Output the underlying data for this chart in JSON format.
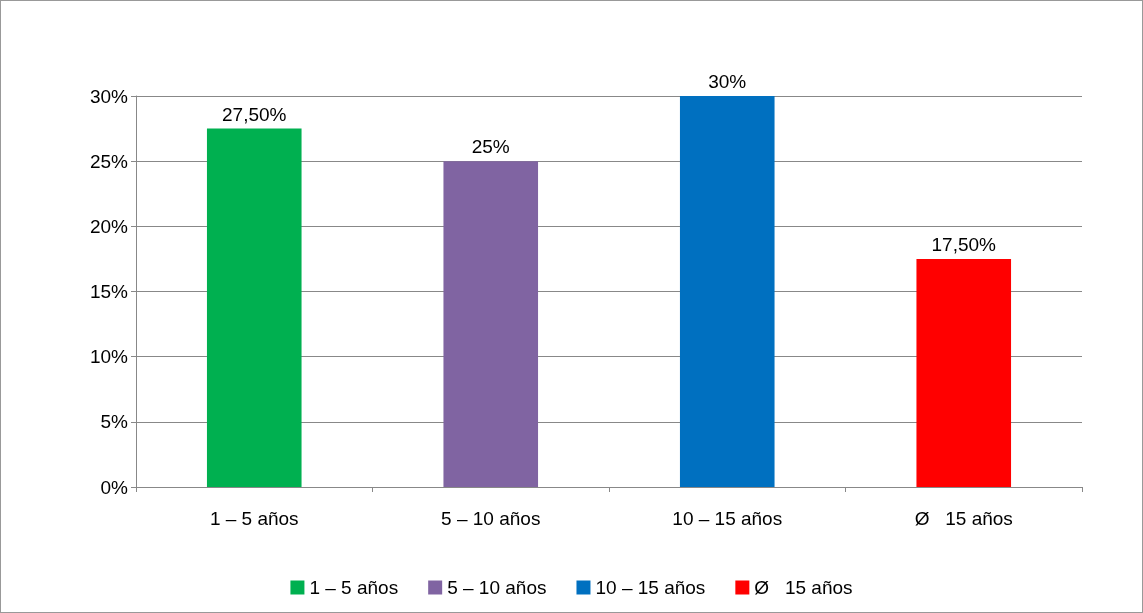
{
  "chart_data": {
    "type": "bar",
    "categories": [
      "1 – 5 años",
      "5 – 10 años",
      "10 – 15 años",
      "Ø   15 años"
    ],
    "series": [
      {
        "name": "1 – 5 años",
        "color": "#00b050",
        "values": [
          27.5,
          null,
          null,
          null
        ],
        "value_labels": [
          "27,50%",
          null,
          null,
          null
        ]
      },
      {
        "name": "5 – 10 años",
        "color": "#8064a2",
        "values": [
          null,
          25,
          null,
          null
        ],
        "value_labels": [
          null,
          "25%",
          null,
          null
        ]
      },
      {
        "name": "10 – 15 años",
        "color": "#0070c0",
        "values": [
          null,
          null,
          30,
          null
        ],
        "value_labels": [
          null,
          null,
          "30%",
          null
        ]
      },
      {
        "name": "Ø   15 años",
        "color": "#ff0000",
        "values": [
          null,
          null,
          null,
          17.5
        ],
        "value_labels": [
          null,
          null,
          null,
          "17,50%"
        ]
      }
    ],
    "ylim": [
      0,
      30
    ],
    "yticks": [
      {
        "value": 0,
        "label": "0%"
      },
      {
        "value": 5,
        "label": "5%"
      },
      {
        "value": 10,
        "label": "10%"
      },
      {
        "value": 15,
        "label": "15%"
      },
      {
        "value": 20,
        "label": "20%"
      },
      {
        "value": 25,
        "label": "25%"
      },
      {
        "value": 30,
        "label": "30%"
      }
    ],
    "grid": "y",
    "legend": "bottom"
  }
}
